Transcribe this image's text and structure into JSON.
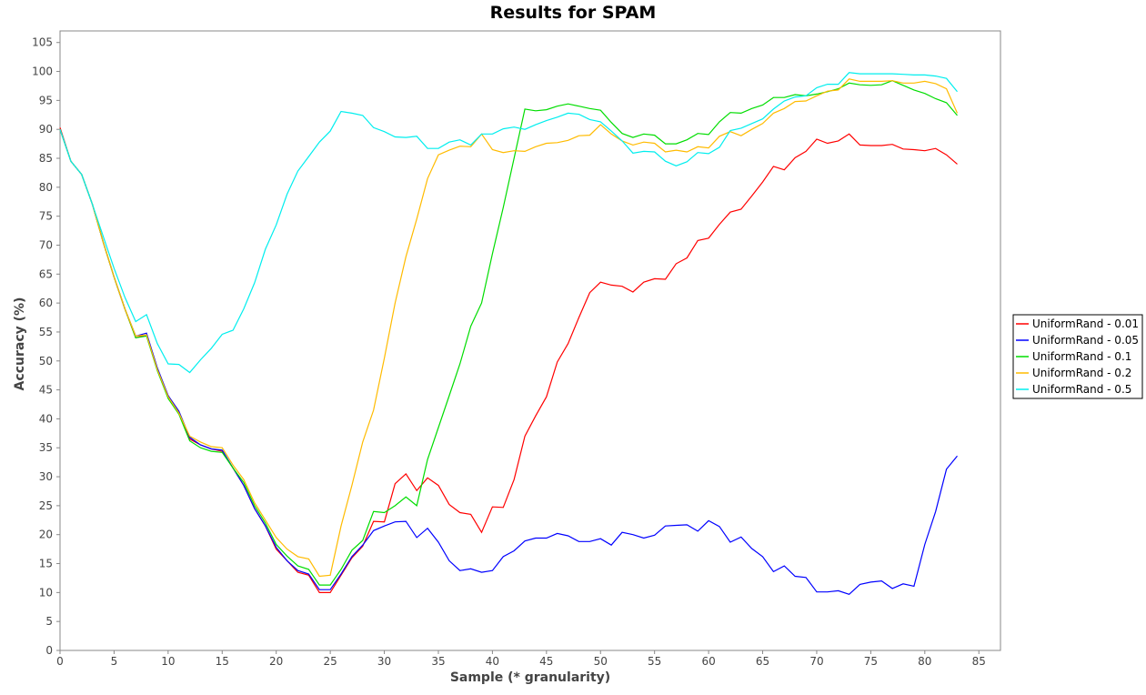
{
  "chart_data": {
    "type": "line",
    "title": "Results for SPAM",
    "xlabel": "Sample (* granularity)",
    "ylabel": "Accuracy (%)",
    "xlim": [
      0,
      87
    ],
    "ylim": [
      0,
      107
    ],
    "xticks": [
      0,
      5,
      10,
      15,
      20,
      25,
      30,
      35,
      40,
      45,
      50,
      55,
      60,
      65,
      70,
      75,
      80,
      85
    ],
    "yticks": [
      0,
      5,
      10,
      15,
      20,
      25,
      30,
      35,
      40,
      45,
      50,
      55,
      60,
      65,
      70,
      75,
      80,
      85,
      90,
      95,
      100,
      105
    ],
    "grid": false,
    "legend_position": "right",
    "series": [
      {
        "name": "UniformRand - 0.01",
        "color": "#ff0000",
        "x": [
          0,
          1,
          2,
          3,
          4,
          5,
          6,
          7,
          8,
          9,
          10,
          11,
          12,
          13,
          14,
          15,
          16,
          17,
          18,
          19,
          20,
          21,
          22,
          23,
          24,
          25,
          26,
          27,
          28,
          29,
          30,
          31,
          32,
          33,
          34,
          35,
          36,
          37,
          38,
          39,
          40,
          41,
          42,
          43,
          44,
          45,
          46,
          47,
          48,
          49,
          50,
          51,
          52,
          53,
          54,
          55,
          56,
          57,
          58,
          59,
          60,
          61,
          62,
          63,
          64,
          65,
          66,
          67,
          68,
          69,
          70,
          71,
          72,
          73,
          74,
          75,
          76,
          77,
          78,
          79,
          80,
          81,
          82,
          83
        ],
        "values": [
          90.3,
          84.5,
          82.2,
          77.0,
          70.5,
          64.5,
          59.0,
          54.0,
          54.5,
          48.5,
          44.0,
          41.0,
          36.5,
          35.5,
          34.8,
          34.4,
          31.5,
          28.5,
          24.5,
          21.5,
          17.5,
          15.5,
          13.5,
          13.0,
          10.0,
          10.0,
          13.0,
          16.0,
          18.0,
          22.3,
          22.2,
          28.8,
          30.5,
          27.6,
          29.8,
          28.5,
          25.2,
          23.8,
          23.5,
          20.4,
          24.8,
          24.7,
          29.5,
          37.0,
          40.5,
          43.8,
          49.8,
          53.0,
          57.5,
          61.8,
          63.6,
          63.1,
          62.9,
          61.9,
          63.6,
          64.2,
          64.1,
          66.8,
          67.8,
          70.8,
          71.2,
          73.6,
          75.7,
          76.2,
          78.5,
          80.9,
          83.6,
          83.0,
          85.1,
          86.2,
          88.3,
          87.6,
          88.0,
          89.2,
          87.3,
          87.2,
          87.2,
          87.4,
          86.6,
          86.5,
          86.3,
          86.7,
          85.6,
          84.0
        ]
      },
      {
        "name": "UniformRand - 0.05",
        "color": "#0000ff",
        "x": [
          0,
          1,
          2,
          3,
          4,
          5,
          6,
          7,
          8,
          9,
          10,
          11,
          12,
          13,
          14,
          15,
          16,
          17,
          18,
          19,
          20,
          21,
          22,
          23,
          24,
          25,
          26,
          27,
          28,
          29,
          30,
          31,
          32,
          33,
          34,
          35,
          36,
          37,
          38,
          39,
          40,
          41,
          42,
          43,
          44,
          45,
          46,
          47,
          48,
          49,
          50,
          51,
          52,
          53,
          54,
          55,
          56,
          57,
          58,
          59,
          60,
          61,
          62,
          63,
          64,
          65,
          66,
          67,
          68,
          69,
          70,
          71,
          72,
          73,
          74,
          75,
          76,
          77,
          78,
          79,
          80,
          81,
          82,
          83
        ],
        "values": [
          90.0,
          84.5,
          82.2,
          77.0,
          70.5,
          64.5,
          59.0,
          54.3,
          54.8,
          48.8,
          44.0,
          41.3,
          36.8,
          35.5,
          34.8,
          34.6,
          31.5,
          28.5,
          24.5,
          21.5,
          17.8,
          15.5,
          13.8,
          13.2,
          10.5,
          10.5,
          13.2,
          16.2,
          18.2,
          20.7,
          21.5,
          22.2,
          22.3,
          19.5,
          21.1,
          18.7,
          15.5,
          13.8,
          14.1,
          13.5,
          13.8,
          16.2,
          17.2,
          18.9,
          19.4,
          19.4,
          20.2,
          19.8,
          18.8,
          18.8,
          19.3,
          18.2,
          20.4,
          20.0,
          19.4,
          19.9,
          21.5,
          21.6,
          21.7,
          20.6,
          22.4,
          21.4,
          18.7,
          19.6,
          17.6,
          16.2,
          13.6,
          14.6,
          12.8,
          12.6,
          10.1,
          10.1,
          10.3,
          9.7,
          11.4,
          11.8,
          12.0,
          10.7,
          11.5,
          11.1,
          18.3,
          24.0,
          31.3,
          33.6
        ]
      },
      {
        "name": "UniformRand - 0.1",
        "color": "#00dd00",
        "x": [
          0,
          1,
          2,
          3,
          4,
          5,
          6,
          7,
          8,
          9,
          10,
          11,
          12,
          13,
          14,
          15,
          16,
          17,
          18,
          19,
          20,
          21,
          22,
          23,
          24,
          25,
          26,
          27,
          28,
          29,
          30,
          31,
          32,
          33,
          34,
          35,
          36,
          37,
          38,
          39,
          40,
          41,
          42,
          43,
          44,
          45,
          46,
          47,
          48,
          49,
          50,
          51,
          52,
          53,
          54,
          55,
          56,
          57,
          58,
          59,
          60,
          61,
          62,
          63,
          64,
          65,
          66,
          67,
          68,
          69,
          70,
          71,
          72,
          73,
          74,
          75,
          76,
          77,
          78,
          79,
          80,
          81,
          82,
          83
        ],
        "values": [
          90.0,
          84.5,
          82.2,
          77.0,
          70.5,
          64.5,
          59.0,
          54.0,
          54.3,
          48.3,
          43.5,
          40.8,
          36.2,
          35.0,
          34.4,
          34.2,
          31.5,
          29.0,
          25.0,
          22.0,
          18.3,
          16.3,
          14.6,
          14.0,
          11.3,
          11.3,
          14.0,
          17.3,
          19.0,
          24.0,
          23.8,
          25.0,
          26.5,
          25.0,
          33.0,
          38.5,
          44.0,
          49.5,
          56.0,
          60.0,
          68.5,
          76.5,
          85.0,
          93.5,
          93.2,
          93.4,
          94.0,
          94.4,
          94.0,
          93.6,
          93.3,
          91.2,
          89.3,
          88.6,
          89.2,
          89.0,
          87.5,
          87.5,
          88.2,
          89.3,
          89.1,
          91.3,
          92.9,
          92.8,
          93.6,
          94.2,
          95.5,
          95.5,
          96.0,
          95.8,
          96.1,
          96.5,
          97.0,
          98.0,
          97.7,
          97.6,
          97.7,
          98.4,
          97.6,
          96.8,
          96.2,
          95.3,
          94.6,
          92.4
        ]
      },
      {
        "name": "UniformRand - 0.2",
        "color": "#ffbb00",
        "x": [
          0,
          1,
          2,
          3,
          4,
          5,
          6,
          7,
          8,
          9,
          10,
          11,
          12,
          13,
          14,
          15,
          16,
          17,
          18,
          19,
          20,
          21,
          22,
          23,
          24,
          25,
          26,
          27,
          28,
          29,
          30,
          31,
          32,
          33,
          34,
          35,
          36,
          37,
          38,
          39,
          40,
          41,
          42,
          43,
          44,
          45,
          46,
          47,
          48,
          49,
          50,
          51,
          52,
          53,
          54,
          55,
          56,
          57,
          58,
          59,
          60,
          61,
          62,
          63,
          64,
          65,
          66,
          67,
          68,
          69,
          70,
          71,
          72,
          73,
          74,
          75,
          76,
          77,
          78,
          79,
          80,
          81,
          82,
          83
        ],
        "values": [
          90.0,
          84.5,
          82.2,
          77.0,
          70.5,
          64.5,
          59.0,
          54.3,
          54.5,
          48.5,
          43.8,
          41.0,
          37.0,
          36.0,
          35.2,
          35.0,
          32.0,
          29.5,
          25.5,
          22.5,
          19.5,
          17.5,
          16.2,
          15.8,
          12.8,
          13.0,
          21.5,
          28.5,
          36.0,
          41.5,
          50.5,
          60.0,
          68.0,
          74.5,
          81.5,
          85.6,
          86.4,
          87.1,
          87.0,
          89.2,
          86.5,
          86.0,
          86.3,
          86.2,
          87.0,
          87.6,
          87.7,
          88.1,
          88.9,
          89.0,
          90.8,
          89.2,
          88.0,
          87.3,
          87.8,
          87.6,
          86.1,
          86.4,
          86.1,
          87.0,
          86.8,
          88.8,
          89.6,
          88.9,
          90.0,
          91.0,
          92.8,
          93.6,
          94.8,
          94.9,
          95.8,
          96.6,
          96.8,
          98.7,
          98.3,
          98.3,
          98.3,
          98.4,
          98.0,
          98.0,
          98.3,
          97.9,
          97.0,
          92.8
        ]
      },
      {
        "name": "UniformRand - 0.5",
        "color": "#00eeee",
        "x": [
          0,
          1,
          2,
          3,
          4,
          5,
          6,
          7,
          8,
          9,
          10,
          11,
          12,
          13,
          14,
          15,
          16,
          17,
          18,
          19,
          20,
          21,
          22,
          23,
          24,
          25,
          26,
          27,
          28,
          29,
          30,
          31,
          32,
          33,
          34,
          35,
          36,
          37,
          38,
          39,
          40,
          41,
          42,
          43,
          44,
          45,
          46,
          47,
          48,
          49,
          50,
          51,
          52,
          53,
          54,
          55,
          56,
          57,
          58,
          59,
          60,
          61,
          62,
          63,
          64,
          65,
          66,
          67,
          68,
          69,
          70,
          71,
          72,
          73,
          74,
          75,
          76,
          77,
          78,
          79,
          80,
          81,
          82,
          83
        ],
        "values": [
          90.0,
          84.5,
          82.2,
          77.0,
          71.5,
          66.0,
          61.0,
          56.8,
          58.0,
          53.0,
          49.5,
          49.4,
          48.0,
          50.2,
          52.2,
          54.6,
          55.3,
          59.0,
          63.5,
          69.3,
          73.5,
          78.8,
          82.8,
          85.3,
          87.8,
          89.7,
          93.1,
          92.8,
          92.4,
          90.3,
          89.6,
          88.7,
          88.6,
          88.8,
          86.7,
          86.7,
          87.8,
          88.2,
          87.3,
          89.2,
          89.2,
          90.1,
          90.4,
          90.0,
          90.8,
          91.5,
          92.1,
          92.8,
          92.6,
          91.7,
          91.3,
          89.7,
          88.0,
          85.9,
          86.2,
          86.1,
          84.5,
          83.7,
          84.4,
          86.0,
          85.8,
          86.9,
          89.8,
          90.2,
          91.0,
          91.8,
          93.5,
          94.9,
          95.6,
          95.8,
          97.2,
          97.8,
          97.8,
          99.8,
          99.6,
          99.6,
          99.6,
          99.6,
          99.5,
          99.4,
          99.4,
          99.2,
          98.8,
          96.5
        ]
      }
    ]
  }
}
